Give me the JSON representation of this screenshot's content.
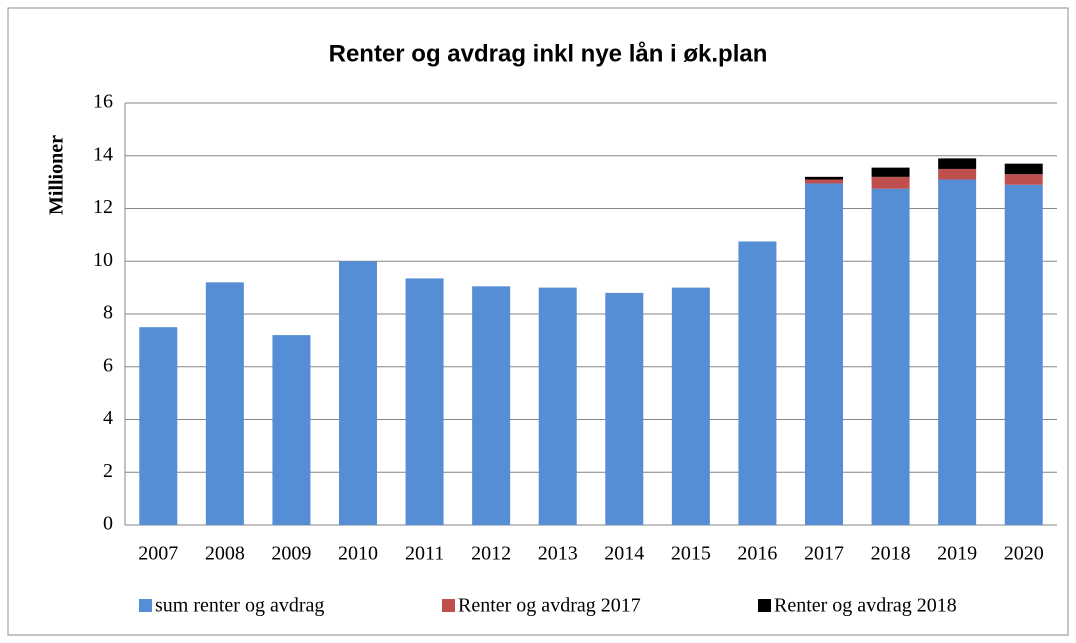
{
  "chart_data": {
    "type": "stacked-bar",
    "title": "Renter og avdrag inkl nye lån i øk.plan",
    "y_axis_label": "Millioner",
    "categories": [
      "2007",
      "2008",
      "2009",
      "2010",
      "2011",
      "2012",
      "2013",
      "2014",
      "2015",
      "2016",
      "2017",
      "2018",
      "2019",
      "2020"
    ],
    "series": [
      {
        "name": "sum renter og avdrag",
        "color": "#558ed5",
        "values": [
          7.5,
          9.2,
          7.2,
          10.0,
          9.35,
          9.05,
          9.0,
          8.8,
          9.0,
          10.75,
          12.95,
          12.75,
          13.1,
          12.9
        ]
      },
      {
        "name": "Renter og avdrag 2017",
        "color": "#c0504d",
        "values": [
          0,
          0,
          0,
          0,
          0,
          0,
          0,
          0,
          0,
          0,
          0.15,
          0.45,
          0.4,
          0.4
        ]
      },
      {
        "name": "Renter og avdrag 2018",
        "color": "#000000",
        "values": [
          0,
          0,
          0,
          0,
          0,
          0,
          0,
          0,
          0,
          0,
          0.1,
          0.35,
          0.4,
          0.4
        ]
      }
    ],
    "ylim": [
      0,
      16
    ],
    "yticks": [
      0,
      2,
      4,
      6,
      8,
      10,
      12,
      14,
      16
    ],
    "grid": true,
    "legend": "bottom"
  }
}
